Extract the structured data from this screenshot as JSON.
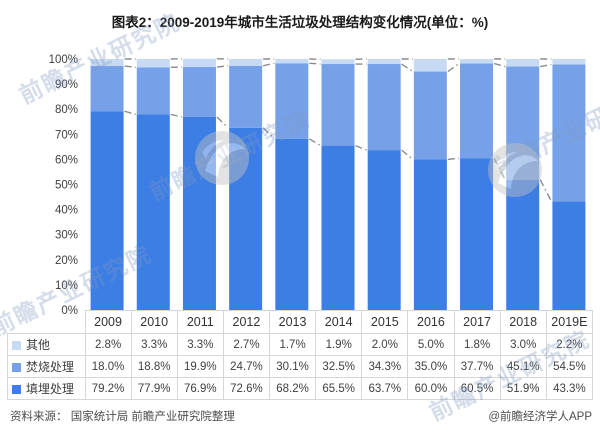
{
  "title": "图表2：2009-2019年城市生活垃圾处理结构变化情况(单位：%)",
  "chart_data": {
    "type": "bar",
    "stacked": true,
    "percent_stacked": true,
    "title": "图表2：2009-2019年城市生活垃圾处理结构变化情况(单位：%)",
    "categories": [
      "2009",
      "2010",
      "2011",
      "2012",
      "2013",
      "2014",
      "2015",
      "2016",
      "2017",
      "2018",
      "2019E"
    ],
    "series": [
      {
        "name": "填埋处理",
        "color": "#3d7ee4",
        "values": [
          79.2,
          77.9,
          76.9,
          72.6,
          68.2,
          65.5,
          63.7,
          60.0,
          60.5,
          51.9,
          43.3
        ]
      },
      {
        "name": "焚烧处理",
        "color": "#76a1e8",
        "values": [
          18.0,
          18.8,
          19.9,
          24.7,
          30.1,
          32.5,
          34.3,
          35.0,
          37.7,
          45.1,
          54.5
        ]
      },
      {
        "name": "其他",
        "color": "#c7daf4",
        "values": [
          2.8,
          3.3,
          3.3,
          2.7,
          1.7,
          1.9,
          2.0,
          5.0,
          1.8,
          3.0,
          2.2
        ]
      }
    ],
    "xlabel": "",
    "ylabel": "",
    "ylim": [
      0,
      100
    ],
    "ytick_step": 10,
    "ytick_suffix": "%",
    "grid": false,
    "series_lines": true,
    "series_line_style": "dash-dot",
    "series_line_color": "#8c8c8c",
    "legend_position": "table-left-column"
  },
  "table": {
    "rows": [
      {
        "label": "其他",
        "swatch": "#c7daf4",
        "values": [
          "2.8%",
          "3.3%",
          "3.3%",
          "2.7%",
          "1.7%",
          "1.9%",
          "2.0%",
          "5.0%",
          "1.8%",
          "3.0%",
          "2.2%"
        ]
      },
      {
        "label": "焚烧处理",
        "swatch": "#76a1e8",
        "values": [
          "18.0%",
          "18.8%",
          "19.9%",
          "24.7%",
          "30.1%",
          "32.5%",
          "34.3%",
          "35.0%",
          "37.7%",
          "45.1%",
          "54.5%"
        ]
      },
      {
        "label": "填埋处理",
        "swatch": "#3d7ee4",
        "values": [
          "79.2%",
          "77.9%",
          "76.9%",
          "72.6%",
          "68.2%",
          "65.5%",
          "63.7%",
          "60.0%",
          "60.5%",
          "51.9%",
          "43.3%"
        ]
      }
    ]
  },
  "footer": {
    "source": "资料来源： 国家统计局 前瞻产业研究院整理",
    "credit": "@前瞻经济学人APP"
  },
  "watermark": {
    "text": "前瞻产业研究院"
  }
}
